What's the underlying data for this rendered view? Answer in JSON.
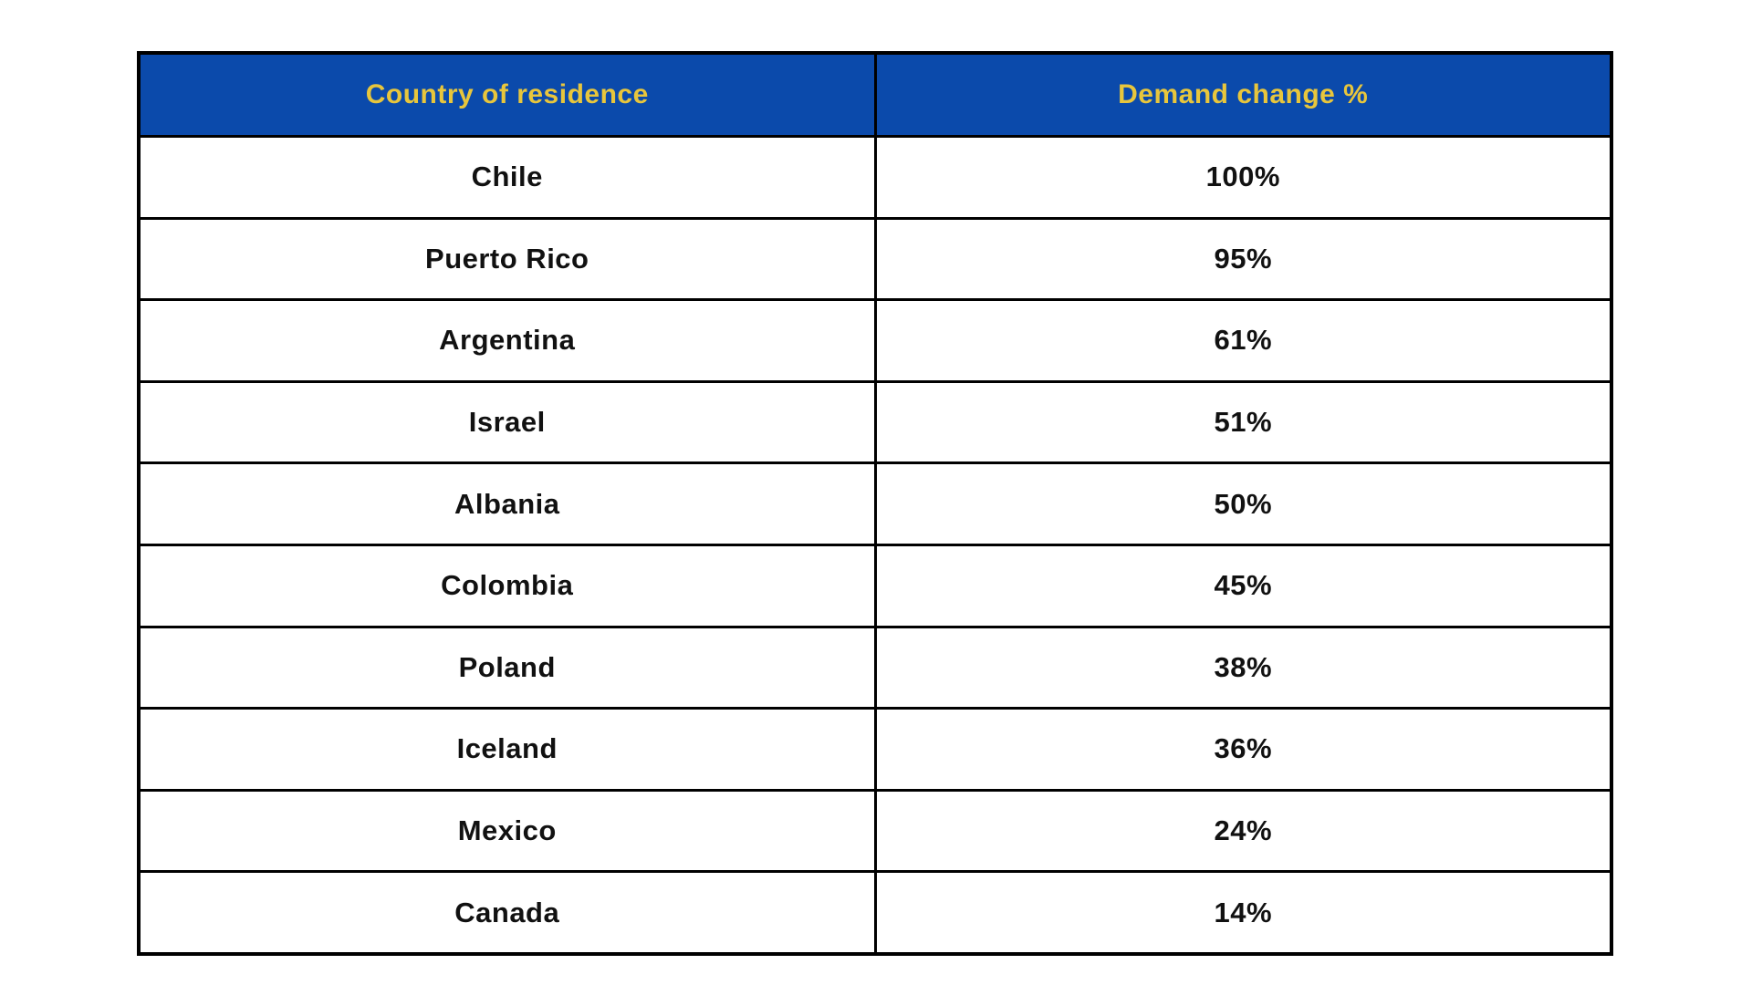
{
  "table": {
    "columns": [
      {
        "label": "Country of residence"
      },
      {
        "label": "Demand change %"
      }
    ],
    "rows": [
      {
        "country": "Chile",
        "value": "100%"
      },
      {
        "country": "Puerto Rico",
        "value": "95%"
      },
      {
        "country": "Argentina",
        "value": "61%"
      },
      {
        "country": "Israel",
        "value": "51%"
      },
      {
        "country": "Albania",
        "value": "50%"
      },
      {
        "country": "Colombia",
        "value": "45%"
      },
      {
        "country": "Poland",
        "value": "38%"
      },
      {
        "country": "Iceland",
        "value": "36%"
      },
      {
        "country": "Mexico",
        "value": "24%"
      },
      {
        "country": "Canada",
        "value": "14%"
      }
    ]
  },
  "colors": {
    "header_bg": "#0b4aab",
    "header_text": "#e8c63c",
    "border": "#000000",
    "row_bg": "#ffffff",
    "row_text": "#111111"
  },
  "chart_data": {
    "type": "table",
    "title": "",
    "columns": [
      "Country of residence",
      "Demand change %"
    ],
    "categories": [
      "Chile",
      "Puerto Rico",
      "Argentina",
      "Israel",
      "Albania",
      "Colombia",
      "Poland",
      "Iceland",
      "Mexico",
      "Canada"
    ],
    "values": [
      100,
      95,
      61,
      51,
      50,
      45,
      38,
      36,
      24,
      14
    ],
    "value_format": "percent",
    "sorted": "descending"
  }
}
